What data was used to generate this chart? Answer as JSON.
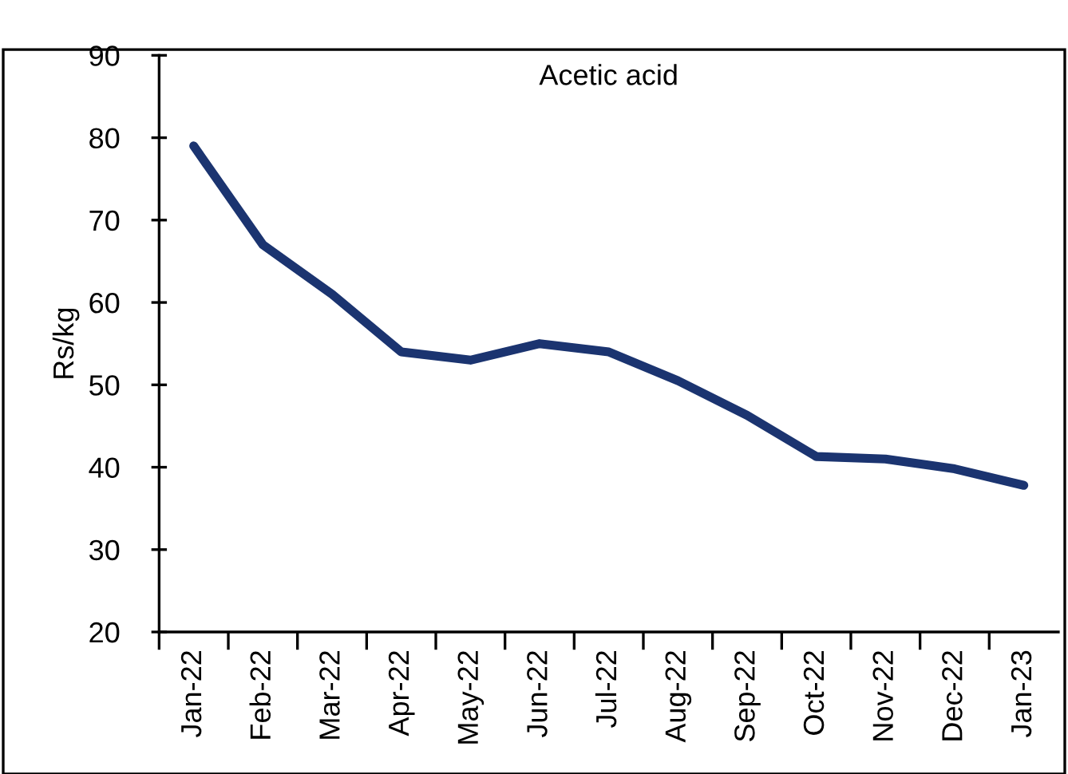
{
  "chart_data": {
    "type": "line",
    "title": "Acetic acid",
    "ylabel": "Rs/kg",
    "categories": [
      "Jan-22",
      "Feb-22",
      "Mar-22",
      "Apr-22",
      "May-22",
      "Jun-22",
      "Jul-22",
      "Aug-22",
      "Sep-22",
      "Oct-22",
      "Nov-22",
      "Dec-22",
      "Jan-23"
    ],
    "series": [
      {
        "color": "#1b3470",
        "values": [
          79,
          67,
          61,
          54,
          53,
          55,
          54,
          50.5,
          46.3,
          41.3,
          41,
          39.8,
          37.8
        ]
      }
    ],
    "ylim": [
      20,
      90
    ],
    "yticks": [
      20,
      30,
      40,
      50,
      60,
      70,
      80,
      90
    ],
    "grid": false,
    "legend": false,
    "marker": "none",
    "line_style": "solid"
  }
}
